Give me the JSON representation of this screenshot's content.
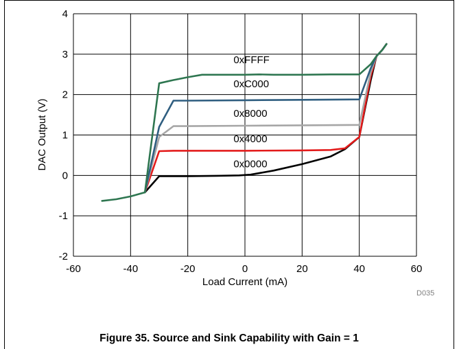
{
  "caption": "Figure 35. Source and Sink Capability with Gain = 1",
  "figure_code": "D035",
  "chart_data": {
    "type": "line",
    "xlabel": "Load Current (mA)",
    "ylabel": "DAC Output (V)",
    "xlim": [
      -60,
      60
    ],
    "ylim": [
      -2,
      4
    ],
    "xticks": [
      -60,
      -40,
      -20,
      0,
      20,
      40,
      60
    ],
    "yticks": [
      -2,
      -1,
      0,
      1,
      2,
      3,
      4
    ],
    "grid": true,
    "series": [
      {
        "name": "0xFFFF",
        "color": "#2e7650",
        "points": [
          [
            -50,
            -0.63
          ],
          [
            -45,
            -0.59
          ],
          [
            -40,
            -0.52
          ],
          [
            -35,
            -0.42
          ],
          [
            -30,
            2.28
          ],
          [
            -25,
            2.36
          ],
          [
            -20,
            2.43
          ],
          [
            -15,
            2.49
          ],
          [
            -10,
            2.49
          ],
          [
            0,
            2.49
          ],
          [
            5,
            2.5
          ],
          [
            10,
            2.49
          ],
          [
            20,
            2.49
          ],
          [
            30,
            2.5
          ],
          [
            40,
            2.5
          ],
          [
            44,
            2.75
          ],
          [
            46,
            2.95
          ],
          [
            48,
            3.1
          ],
          [
            49.5,
            3.25
          ]
        ]
      },
      {
        "name": "0xC000",
        "color": "#2f5e80",
        "points": [
          [
            -35,
            -0.42
          ],
          [
            -30,
            1.2
          ],
          [
            -25,
            1.85
          ],
          [
            -20,
            1.85
          ],
          [
            0,
            1.86
          ],
          [
            20,
            1.87
          ],
          [
            40,
            1.88
          ],
          [
            44,
            2.65
          ],
          [
            46,
            2.95
          ],
          [
            48,
            3.1
          ],
          [
            49.5,
            3.25
          ]
        ]
      },
      {
        "name": "0x8000",
        "color": "#a6a6a6",
        "points": [
          [
            -35,
            -0.42
          ],
          [
            -30,
            0.95
          ],
          [
            -25,
            1.22
          ],
          [
            -20,
            1.22
          ],
          [
            0,
            1.23
          ],
          [
            20,
            1.24
          ],
          [
            40,
            1.25
          ],
          [
            44,
            2.55
          ],
          [
            46,
            2.95
          ],
          [
            48,
            3.1
          ],
          [
            49.5,
            3.25
          ]
        ]
      },
      {
        "name": "0x4000",
        "color": "#e31b1b",
        "points": [
          [
            -35,
            -0.42
          ],
          [
            -30,
            0.6
          ],
          [
            -25,
            0.61
          ],
          [
            -20,
            0.61
          ],
          [
            0,
            0.61
          ],
          [
            20,
            0.62
          ],
          [
            30,
            0.63
          ],
          [
            35,
            0.67
          ],
          [
            40,
            0.95
          ],
          [
            44,
            2.45
          ],
          [
            46,
            2.95
          ],
          [
            48,
            3.1
          ],
          [
            49.5,
            3.25
          ]
        ]
      },
      {
        "name": "0x0000",
        "color": "#000000",
        "points": [
          [
            -35,
            -0.42
          ],
          [
            -30,
            -0.02
          ],
          [
            -25,
            -0.02
          ],
          [
            -20,
            -0.02
          ],
          [
            -10,
            -0.01
          ],
          [
            -2,
            0.0
          ],
          [
            2,
            0.02
          ],
          [
            10,
            0.12
          ],
          [
            20,
            0.28
          ],
          [
            30,
            0.47
          ],
          [
            35,
            0.65
          ],
          [
            40,
            0.95
          ],
          [
            44,
            2.35
          ],
          [
            46,
            2.95
          ],
          [
            48,
            3.1
          ],
          [
            49.5,
            3.25
          ]
        ]
      }
    ],
    "labels": [
      {
        "text": "0xFFFF",
        "x": -4,
        "y": 2.78
      },
      {
        "text": "0xC000",
        "x": -4,
        "y": 2.18
      },
      {
        "text": "0x8000",
        "x": -4,
        "y": 1.45
      },
      {
        "text": "0x4000",
        "x": -4,
        "y": 0.82
      },
      {
        "text": "0x0000",
        "x": -4,
        "y": 0.2
      }
    ]
  }
}
